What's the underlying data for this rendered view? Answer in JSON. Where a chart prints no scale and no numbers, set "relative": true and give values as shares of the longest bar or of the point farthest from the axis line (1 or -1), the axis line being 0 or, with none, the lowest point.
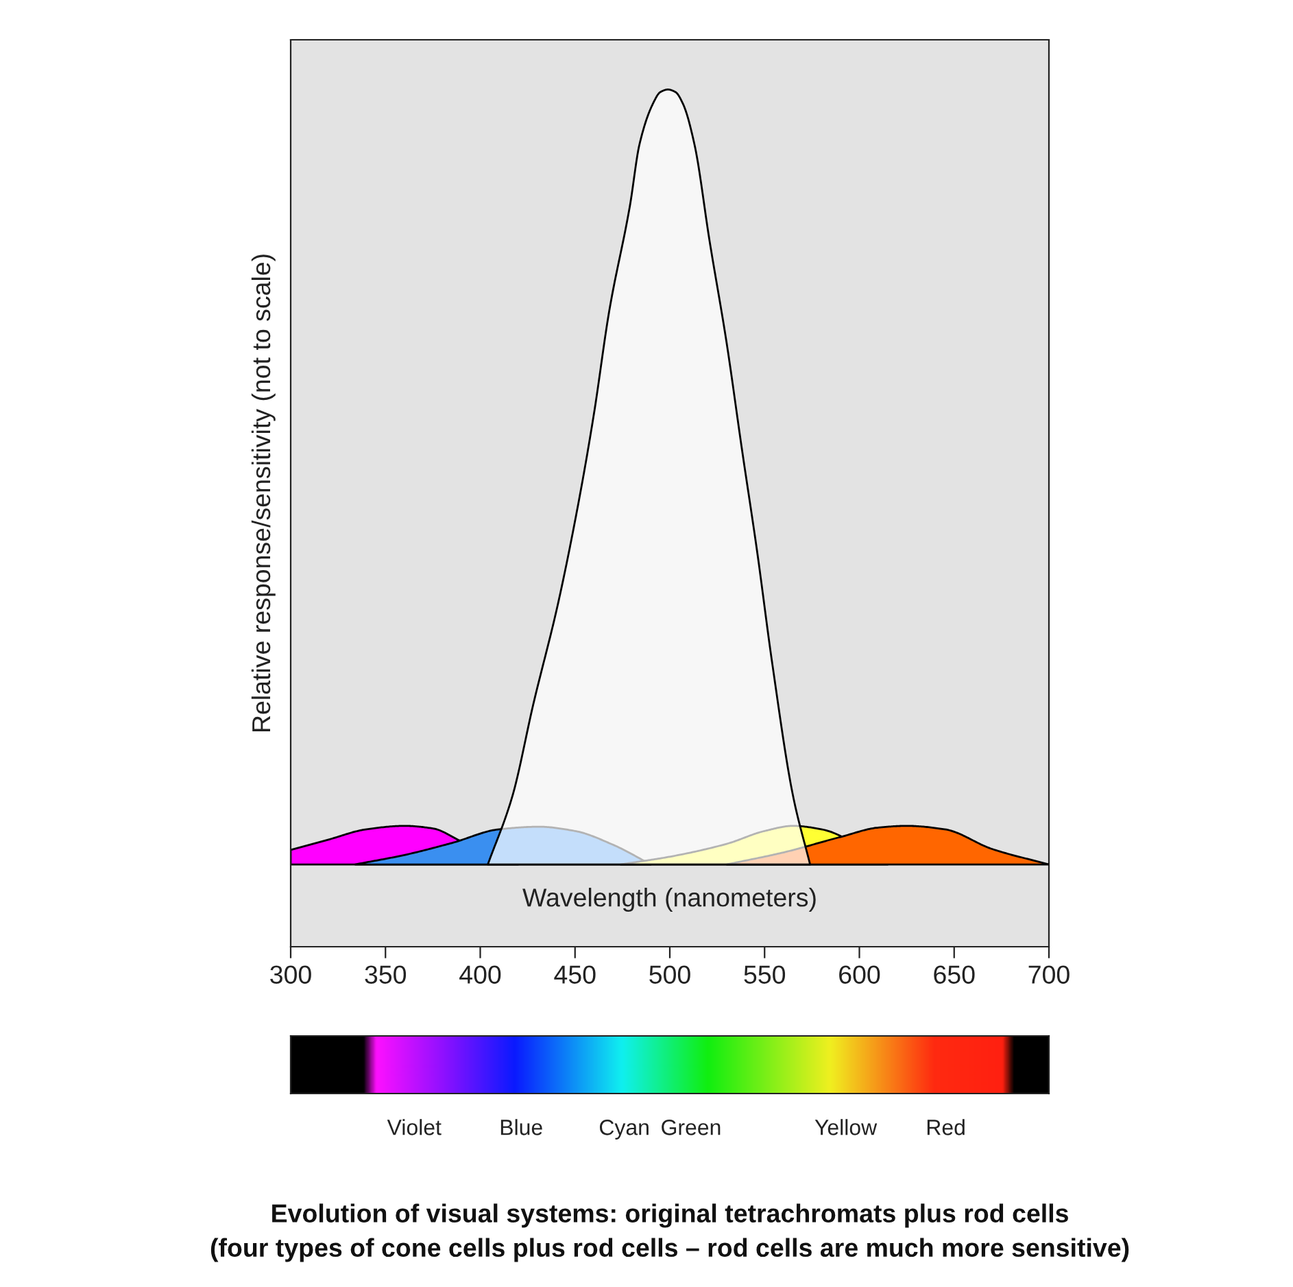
{
  "chart_data": {
    "type": "area",
    "relative": true,
    "title": "Evolution of visual systems: original tetrachromats plus rod cells",
    "subtitle": "(four types of cone cells plus rod cells – rod cells are much more sensitive)",
    "xlabel": "Wavelength (nanometers)",
    "ylabel": "Relative response/sensitivity (not to scale)",
    "xlim": [
      300,
      700
    ],
    "xticks": [
      300,
      350,
      400,
      450,
      500,
      550,
      600,
      650,
      700
    ],
    "grid": false,
    "legend": false,
    "series": [
      {
        "color": "#ff00ff",
        "x": [
          300,
          320,
          340,
          360,
          375,
          390,
          405,
          420
        ],
        "values": [
          0.113,
          0.125,
          0.137,
          0.141,
          0.138,
          0.123,
          null,
          0.096
        ]
      },
      {
        "color": "#3a8ff0",
        "x": [
          334,
          360,
          385,
          410,
          431,
          450,
          470,
          490
        ],
        "values": [
          0.096,
          0.107,
          0.121,
          0.137,
          0.14,
          0.135,
          0.119,
          0.096
        ]
      },
      {
        "color": "#ffff33",
        "x": [
          474,
          500,
          530,
          550,
          565,
          580,
          595,
          615
        ],
        "values": [
          0.096,
          0.105,
          0.12,
          0.135,
          0.141,
          0.137,
          null,
          0.096
        ]
      },
      {
        "color": "#ff6600",
        "x": [
          530,
          560,
          590,
          610,
          625,
          645,
          670,
          700
        ],
        "values": [
          0.096,
          0.11,
          0.128,
          0.139,
          0.141,
          0.137,
          0.114,
          0.096
        ]
      },
      {
        "color": "#ffffff",
        "x": [
          404,
          417,
          428,
          441,
          452,
          460,
          468,
          479,
          484,
          491,
          495,
          499,
          503,
          507,
          513,
          521,
          530,
          538,
          546,
          554,
          565,
          574
        ],
        "values": [
          0.096,
          0.176,
          0.283,
          0.4,
          0.52,
          0.622,
          0.741,
          0.865,
          0.936,
          0.983,
          0.997,
          1.0,
          0.997,
          0.983,
          0.936,
          0.823,
          0.704,
          0.581,
          0.462,
          0.331,
          0.176,
          0.096
        ]
      }
    ],
    "annotations": [
      "Violet",
      "Blue",
      "Cyan",
      "Green",
      "Yellow",
      "Red"
    ]
  }
}
